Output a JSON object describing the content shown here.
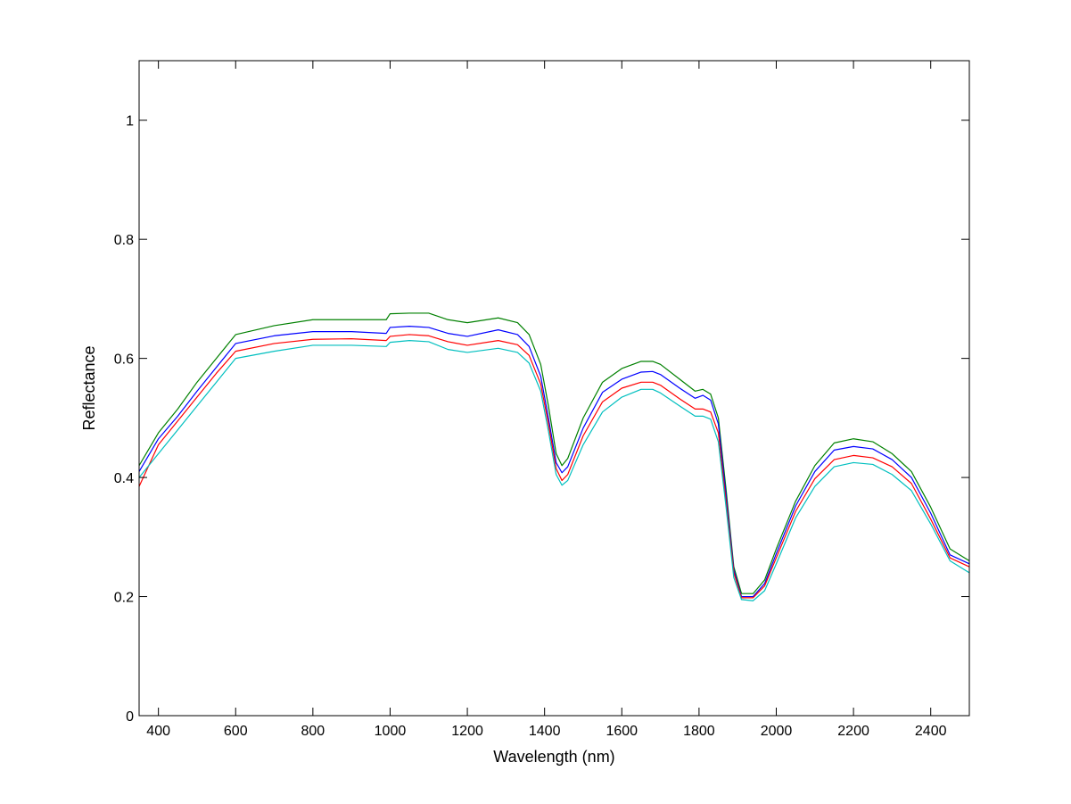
{
  "chart_data": {
    "type": "line",
    "title": "",
    "xlabel": "Wavelength (nm)",
    "ylabel": "Reflectance",
    "xlim": [
      350,
      2500
    ],
    "ylim": [
      0,
      1.1
    ],
    "xticks": [
      400,
      600,
      800,
      1000,
      1200,
      1400,
      1600,
      1800,
      2000,
      2200,
      2400
    ],
    "yticks": [
      0,
      0.2,
      0.4,
      0.6,
      0.8,
      1
    ],
    "ytick_labels": [
      "0",
      "0.2",
      "0.4",
      "0.6",
      "0.8",
      "1"
    ],
    "grid": false,
    "legend": "none",
    "series": [
      {
        "color": "#008000",
        "x": [
          350,
          400,
          450,
          500,
          550,
          600,
          700,
          800,
          900,
          990,
          1000,
          1050,
          1100,
          1150,
          1200,
          1280,
          1330,
          1360,
          1390,
          1410,
          1430,
          1445,
          1460,
          1500,
          1550,
          1600,
          1650,
          1680,
          1700,
          1750,
          1790,
          1810,
          1830,
          1850,
          1870,
          1890,
          1910,
          1940,
          1970,
          2000,
          2050,
          2100,
          2150,
          2200,
          2250,
          2300,
          2350,
          2400,
          2450,
          2500
        ],
        "y": [
          0.42,
          0.475,
          0.515,
          0.56,
          0.6,
          0.64,
          0.655,
          0.665,
          0.665,
          0.665,
          0.675,
          0.676,
          0.676,
          0.665,
          0.66,
          0.668,
          0.66,
          0.64,
          0.59,
          0.52,
          0.44,
          0.42,
          0.432,
          0.5,
          0.56,
          0.583,
          0.595,
          0.595,
          0.59,
          0.565,
          0.545,
          0.548,
          0.54,
          0.5,
          0.38,
          0.25,
          0.205,
          0.205,
          0.228,
          0.28,
          0.36,
          0.42,
          0.458,
          0.465,
          0.46,
          0.44,
          0.41,
          0.35,
          0.28,
          0.26
        ]
      },
      {
        "color": "#0000ff",
        "x": [
          350,
          400,
          450,
          500,
          550,
          600,
          700,
          800,
          900,
          990,
          1000,
          1050,
          1100,
          1150,
          1200,
          1280,
          1330,
          1360,
          1390,
          1410,
          1430,
          1445,
          1460,
          1500,
          1550,
          1600,
          1650,
          1680,
          1700,
          1750,
          1790,
          1810,
          1830,
          1850,
          1870,
          1890,
          1910,
          1940,
          1970,
          2000,
          2050,
          2100,
          2150,
          2200,
          2250,
          2300,
          2350,
          2400,
          2450,
          2500
        ],
        "y": [
          0.41,
          0.465,
          0.503,
          0.545,
          0.585,
          0.625,
          0.638,
          0.645,
          0.645,
          0.642,
          0.652,
          0.654,
          0.652,
          0.642,
          0.637,
          0.648,
          0.64,
          0.62,
          0.57,
          0.5,
          0.425,
          0.408,
          0.418,
          0.483,
          0.543,
          0.565,
          0.577,
          0.578,
          0.573,
          0.55,
          0.533,
          0.538,
          0.53,
          0.49,
          0.37,
          0.245,
          0.2,
          0.2,
          0.222,
          0.272,
          0.352,
          0.41,
          0.446,
          0.452,
          0.448,
          0.43,
          0.4,
          0.34,
          0.27,
          0.255
        ]
      },
      {
        "color": "#ff0000",
        "x": [
          350,
          400,
          450,
          500,
          550,
          600,
          700,
          800,
          900,
          990,
          1000,
          1050,
          1100,
          1150,
          1200,
          1280,
          1330,
          1360,
          1390,
          1410,
          1430,
          1445,
          1460,
          1500,
          1550,
          1600,
          1650,
          1680,
          1700,
          1750,
          1790,
          1810,
          1830,
          1850,
          1870,
          1890,
          1910,
          1940,
          1970,
          2000,
          2050,
          2100,
          2150,
          2200,
          2250,
          2300,
          2350,
          2400,
          2450,
          2500
        ],
        "y": [
          0.385,
          0.455,
          0.495,
          0.535,
          0.575,
          0.612,
          0.625,
          0.632,
          0.633,
          0.63,
          0.637,
          0.64,
          0.638,
          0.628,
          0.622,
          0.63,
          0.623,
          0.605,
          0.557,
          0.49,
          0.415,
          0.395,
          0.405,
          0.47,
          0.527,
          0.55,
          0.56,
          0.56,
          0.555,
          0.532,
          0.515,
          0.515,
          0.51,
          0.475,
          0.36,
          0.24,
          0.198,
          0.198,
          0.218,
          0.265,
          0.343,
          0.398,
          0.43,
          0.437,
          0.433,
          0.418,
          0.39,
          0.33,
          0.265,
          0.25
        ]
      },
      {
        "color": "#00bfbf",
        "x": [
          350,
          400,
          450,
          500,
          550,
          600,
          700,
          800,
          900,
          990,
          1000,
          1050,
          1100,
          1150,
          1200,
          1280,
          1330,
          1360,
          1390,
          1410,
          1430,
          1445,
          1460,
          1500,
          1550,
          1600,
          1650,
          1680,
          1700,
          1750,
          1790,
          1810,
          1830,
          1850,
          1870,
          1890,
          1910,
          1940,
          1970,
          2000,
          2050,
          2100,
          2150,
          2200,
          2250,
          2300,
          2350,
          2400,
          2450,
          2500
        ],
        "y": [
          0.4,
          0.44,
          0.48,
          0.52,
          0.56,
          0.6,
          0.612,
          0.622,
          0.622,
          0.62,
          0.627,
          0.63,
          0.628,
          0.615,
          0.61,
          0.617,
          0.61,
          0.592,
          0.545,
          0.478,
          0.405,
          0.387,
          0.395,
          0.455,
          0.51,
          0.535,
          0.548,
          0.548,
          0.542,
          0.52,
          0.503,
          0.503,
          0.498,
          0.46,
          0.35,
          0.232,
          0.195,
          0.193,
          0.21,
          0.255,
          0.332,
          0.385,
          0.418,
          0.425,
          0.422,
          0.405,
          0.378,
          0.322,
          0.26,
          0.24
        ]
      }
    ]
  }
}
